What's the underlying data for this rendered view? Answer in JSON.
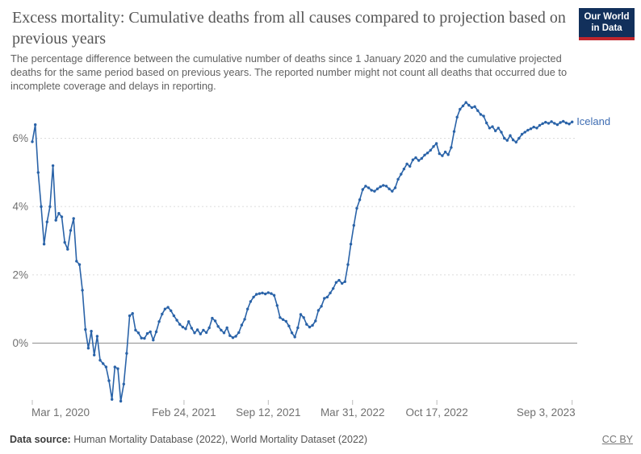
{
  "header": {
    "title": "Excess mortality: Cumulative deaths from all causes compared to projection based on previous years",
    "subtitle": "The percentage difference between the cumulative number of deaths since 1 January 2020 and the cumulative projected deaths for the same period based on previous years. The reported number might not count all deaths that occurred due to incomplete coverage and delays in reporting.",
    "logo": {
      "line1": "Our World",
      "line2": "in Data",
      "bg_color": "#12305b",
      "accent_color": "#c0262d"
    }
  },
  "footer": {
    "datasource_label": "Data source:",
    "datasource_text": " Human Mortality Database (2022), World Mortality Dataset (2022)",
    "license": "CC BY"
  },
  "chart_data": {
    "type": "line",
    "entity": "Iceland",
    "title": "Excess mortality: Cumulative deaths from all causes compared to projection based on previous years",
    "unit": "%",
    "line_color": "#2a63a8",
    "label_color": "#3d6cb2",
    "zero_line_color": "#8e8e8e",
    "gridline_color": "#dcdcdc",
    "axis_text_color": "#707070",
    "start_date": "2020-03-01",
    "interval_days": 7,
    "ylim": [
      -2.1,
      7.3
    ],
    "grid": true,
    "legend_position": "end-of-line-label",
    "yticks": [
      {
        "label": "0%",
        "value": 0
      },
      {
        "label": "2%",
        "value": 2
      },
      {
        "label": "4%",
        "value": 4
      },
      {
        "label": "6%",
        "value": 6
      }
    ],
    "xticks": [
      {
        "label": "Mar 1, 2020",
        "day": 0
      },
      {
        "label": "Feb 24, 2021",
        "day": 360
      },
      {
        "label": "Sep 12, 2021",
        "day": 560
      },
      {
        "label": "Mar 31, 2022",
        "day": 760
      },
      {
        "label": "Oct 17, 2022",
        "day": 960
      },
      {
        "label": "Sep 3, 2023",
        "day": 1281
      }
    ],
    "values": [
      5.9,
      6.4,
      5.0,
      4.0,
      2.9,
      3.55,
      4.0,
      5.2,
      3.6,
      3.8,
      3.7,
      2.95,
      2.75,
      3.3,
      3.65,
      2.4,
      2.3,
      1.55,
      0.4,
      -0.15,
      0.35,
      -0.35,
      0.2,
      -0.5,
      -0.6,
      -0.7,
      -1.1,
      -1.65,
      -0.7,
      -0.75,
      -1.7,
      -1.2,
      -0.3,
      0.8,
      0.87,
      0.38,
      0.3,
      0.15,
      0.14,
      0.28,
      0.33,
      0.09,
      0.33,
      0.63,
      0.85,
      1.0,
      1.05,
      0.95,
      0.8,
      0.67,
      0.55,
      0.47,
      0.42,
      0.63,
      0.44,
      0.3,
      0.39,
      0.27,
      0.38,
      0.31,
      0.45,
      0.73,
      0.65,
      0.49,
      0.38,
      0.3,
      0.45,
      0.22,
      0.16,
      0.2,
      0.31,
      0.53,
      0.7,
      1.0,
      1.22,
      1.35,
      1.43,
      1.45,
      1.47,
      1.44,
      1.48,
      1.45,
      1.4,
      1.1,
      0.75,
      0.69,
      0.64,
      0.5,
      0.3,
      0.18,
      0.45,
      0.84,
      0.75,
      0.55,
      0.47,
      0.52,
      0.65,
      0.96,
      1.08,
      1.31,
      1.35,
      1.47,
      1.6,
      1.78,
      1.84,
      1.75,
      1.8,
      2.3,
      2.9,
      3.45,
      3.95,
      4.2,
      4.5,
      4.6,
      4.55,
      4.48,
      4.45,
      4.52,
      4.58,
      4.62,
      4.6,
      4.52,
      4.45,
      4.55,
      4.8,
      4.95,
      5.1,
      5.25,
      5.18,
      5.37,
      5.43,
      5.35,
      5.41,
      5.51,
      5.57,
      5.65,
      5.76,
      5.85,
      5.55,
      5.49,
      5.6,
      5.52,
      5.73,
      6.2,
      6.62,
      6.85,
      6.95,
      7.05,
      6.97,
      6.9,
      6.93,
      6.81,
      6.7,
      6.65,
      6.45,
      6.3,
      6.34,
      6.22,
      6.3,
      6.18,
      6.0,
      5.94,
      6.08,
      5.95,
      5.89,
      6.0,
      6.12,
      6.18,
      6.24,
      6.28,
      6.33,
      6.3,
      6.38,
      6.43,
      6.47,
      6.44,
      6.49,
      6.44,
      6.4,
      6.46,
      6.5,
      6.45,
      6.42,
      6.48
    ]
  }
}
